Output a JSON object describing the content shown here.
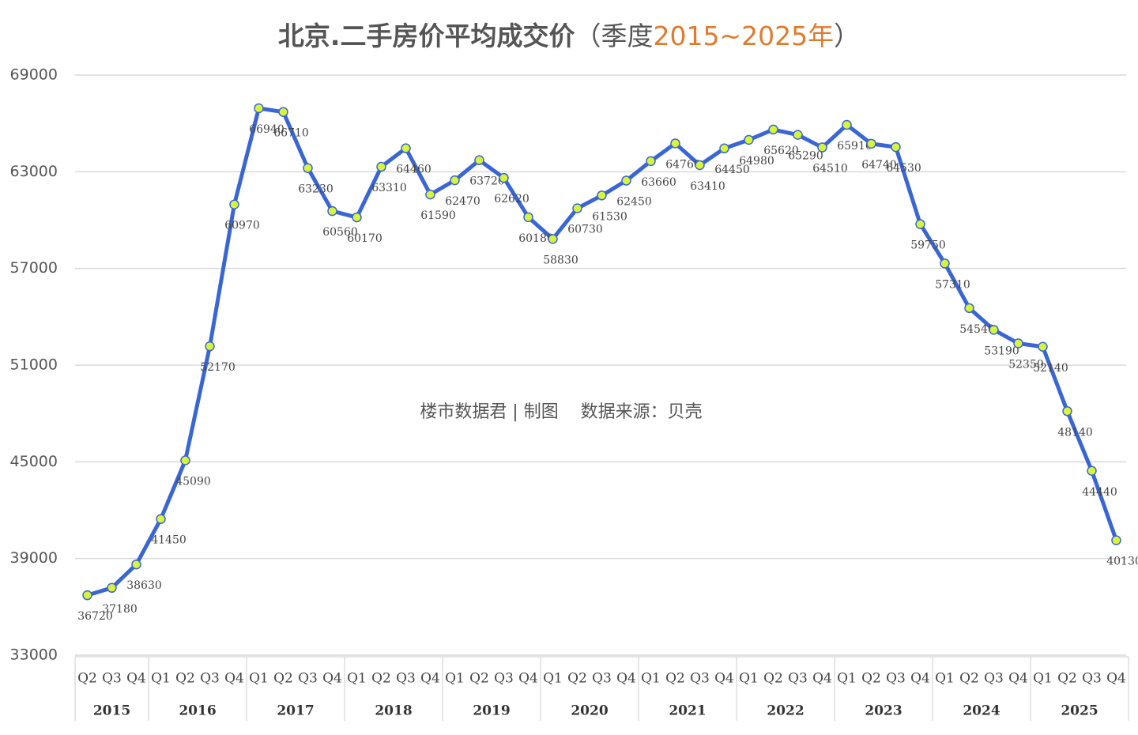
{
  "chart_data": {
    "type": "line",
    "title": "北京.二手房价平均成交价",
    "subtitle_parts": [
      "（季度",
      "2015~2025年",
      "）"
    ],
    "annotation": "楼市数据君 | 制图    数据来源：贝壳",
    "categories": [
      "Q2",
      "Q3",
      "Q4",
      "Q1",
      "Q2",
      "Q3",
      "Q4",
      "Q1",
      "Q2",
      "Q3",
      "Q4",
      "Q1",
      "Q2",
      "Q3",
      "Q4",
      "Q1",
      "Q2",
      "Q3",
      "Q4",
      "Q1",
      "Q2",
      "Q3",
      "Q4",
      "Q1",
      "Q2",
      "Q3",
      "Q4",
      "Q1",
      "Q2",
      "Q3",
      "Q4",
      "Q1",
      "Q2",
      "Q3",
      "Q4",
      "Q1",
      "Q2",
      "Q3",
      "Q4",
      "Q1",
      "Q2",
      "Q3",
      "Q4"
    ],
    "x_groups": [
      "2015",
      "2016",
      "2017",
      "2018",
      "2019",
      "2020",
      "2021",
      "2022",
      "2023",
      "2024",
      "2025"
    ],
    "series": [
      {
        "name": "平均成交价",
        "color": "#3a66d4",
        "marker_color": "#d8f53c",
        "values": [
          36720,
          37180,
          38630,
          41450,
          45090,
          52170,
          60970,
          66940,
          66710,
          63230,
          60560,
          60170,
          63310,
          64460,
          61590,
          62470,
          63720,
          62620,
          60180,
          58830,
          60730,
          61530,
          62450,
          63660,
          64760,
          63410,
          64450,
          64980,
          65620,
          65290,
          64510,
          65910,
          64740,
          64530,
          59750,
          57310,
          54540,
          53190,
          52350,
          52140,
          48140,
          44440,
          40130
        ]
      }
    ],
    "ylim": [
      33000,
      69000
    ],
    "yticks": [
      33000,
      39000,
      45000,
      51000,
      57000,
      63000,
      69000
    ],
    "grid": true
  }
}
